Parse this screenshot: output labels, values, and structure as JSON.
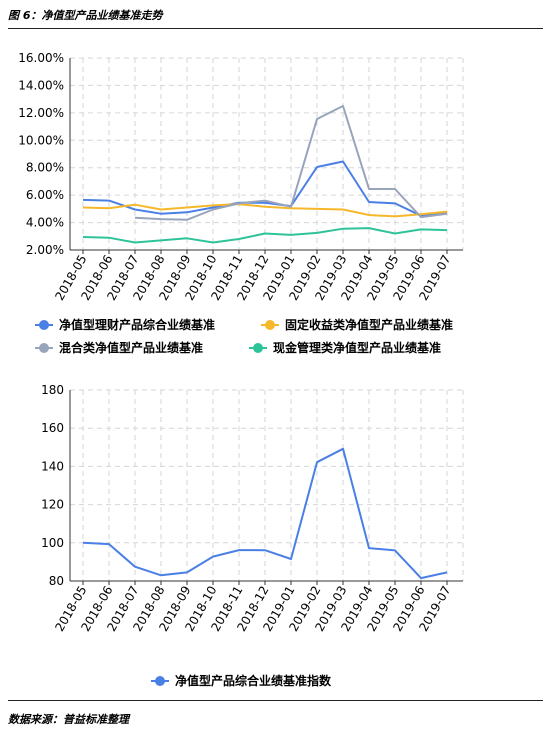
{
  "figure": {
    "title": "图 6：净值型产品业绩基准走势",
    "source": "数据来源：普益标准整理"
  },
  "chart_data": [
    {
      "type": "line",
      "categories": [
        "2018-05",
        "2018-06",
        "2018-07",
        "2018-08",
        "2018-09",
        "2018-10",
        "2018-11",
        "2018-12",
        "2019-01",
        "2019-02",
        "2019-03",
        "2019-04",
        "2019-05",
        "2019-06",
        "2019-07"
      ],
      "yticks": [
        "2.00%",
        "4.00%",
        "6.00%",
        "8.00%",
        "10.00%",
        "12.00%",
        "14.00%",
        "16.00%"
      ],
      "ylim": [
        2,
        16
      ],
      "grid": true,
      "legend_position": "bottom",
      "series": [
        {
          "name": "净值型理财产品综合业绩基准",
          "color": "#4a7fe6",
          "values": [
            5.65,
            5.6,
            4.95,
            4.65,
            4.75,
            5.1,
            5.45,
            5.45,
            5.2,
            8.05,
            8.45,
            5.5,
            5.4,
            4.5,
            4.75
          ]
        },
        {
          "name": "固定收益类净值型产品业绩基准",
          "color": "#f5b82a",
          "values": [
            5.1,
            5.05,
            5.3,
            4.95,
            5.1,
            5.25,
            5.35,
            5.15,
            5.05,
            5.0,
            4.95,
            4.55,
            4.45,
            4.6,
            4.8
          ]
        },
        {
          "name": "混合类净值型产品业绩基准",
          "color": "#98a4bb",
          "values": [
            null,
            null,
            4.35,
            4.25,
            4.2,
            4.95,
            5.4,
            5.6,
            5.15,
            11.55,
            12.5,
            6.45,
            6.45,
            4.4,
            4.65
          ]
        },
        {
          "name": "现金管理类净值型产品业绩基准",
          "color": "#2ec39a",
          "values": [
            2.95,
            2.9,
            2.55,
            2.7,
            2.85,
            2.55,
            2.8,
            3.2,
            3.1,
            3.25,
            3.55,
            3.6,
            3.2,
            3.5,
            3.45
          ]
        }
      ]
    },
    {
      "type": "line",
      "categories": [
        "2018-05",
        "2018-06",
        "2018-07",
        "2018-08",
        "2018-09",
        "2018-10",
        "2018-11",
        "2018-12",
        "2019-01",
        "2019-02",
        "2019-03",
        "2019-04",
        "2019-05",
        "2019-06",
        "2019-07"
      ],
      "yticks": [
        "80",
        "100",
        "120",
        "140",
        "160",
        "180"
      ],
      "ylim": [
        80,
        180
      ],
      "grid": true,
      "legend_position": "bottom",
      "series": [
        {
          "name": "净值型产品综合业绩基准指数",
          "color": "#4a7fe6",
          "values": [
            100,
            99.3,
            87.5,
            83,
            84.5,
            92.8,
            96.2,
            96.1,
            91.5,
            142.2,
            149.2,
            97.2,
            96,
            81.5,
            84.5
          ]
        }
      ]
    }
  ]
}
